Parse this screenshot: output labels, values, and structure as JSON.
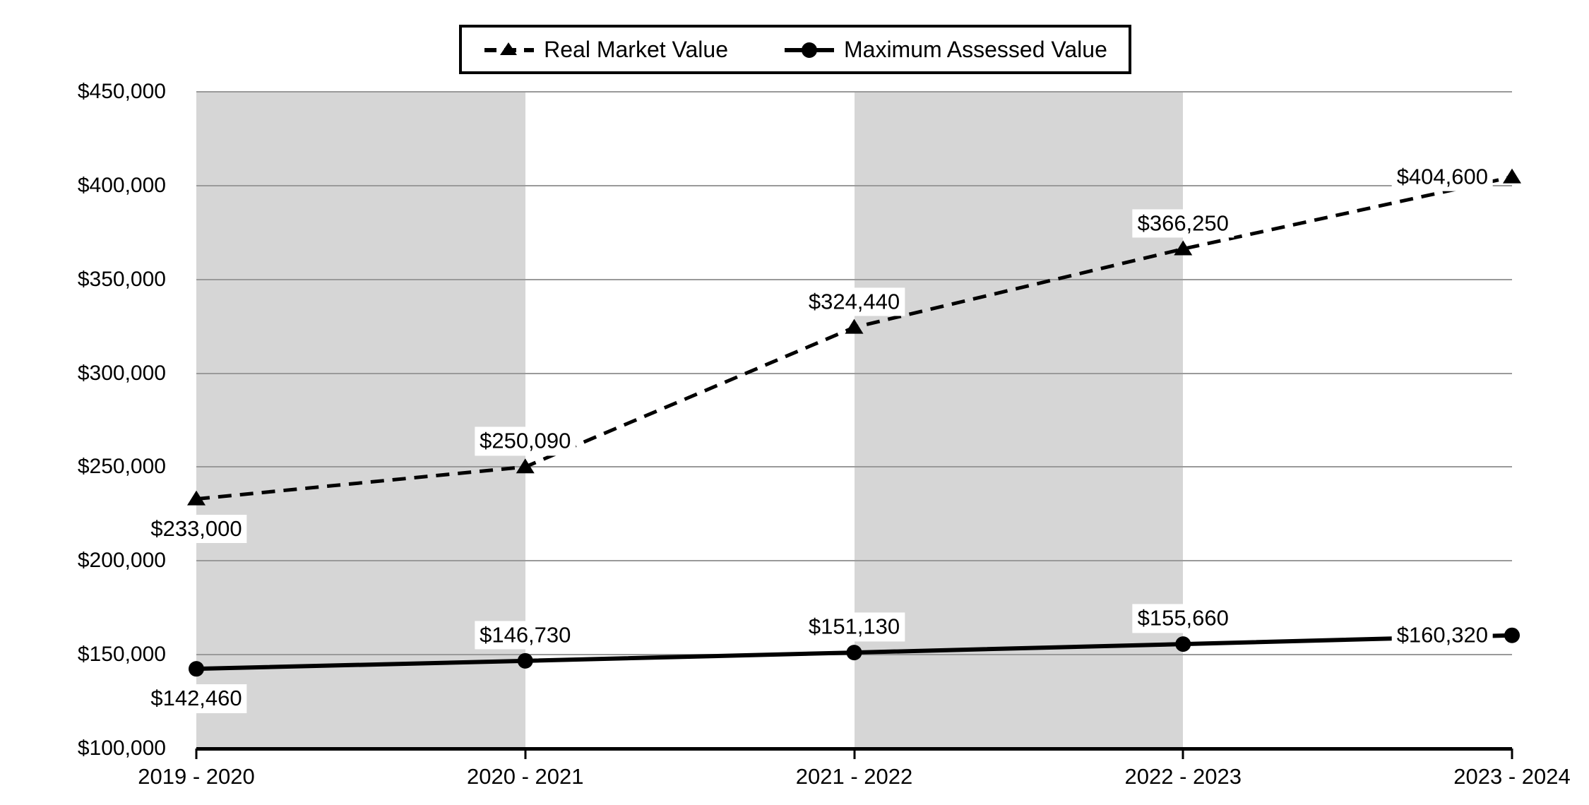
{
  "chart_data": {
    "type": "line",
    "title": "",
    "categories": [
      "2019 - 2020",
      "2020 - 2021",
      "2021 - 2022",
      "2022 - 2023",
      "2023 - 2024"
    ],
    "series": [
      {
        "name": "Real Market Value",
        "line_style": "dashed",
        "marker": "triangle",
        "color": "#000000",
        "values": [
          233000,
          250090,
          324440,
          366250,
          404600
        ],
        "data_labels": [
          "$233,000",
          "$250,090",
          "$324,440",
          "$366,250",
          "$404,600"
        ],
        "label_placements": [
          "below",
          "above",
          "above",
          "above",
          "left"
        ]
      },
      {
        "name": "Maximum Assessed Value",
        "line_style": "solid",
        "marker": "circle",
        "color": "#000000",
        "values": [
          142460,
          146730,
          151130,
          155660,
          160320
        ],
        "data_labels": [
          "$142,460",
          "$146,730",
          "$151,130",
          "$155,660",
          "$160,320"
        ],
        "label_placements": [
          "below",
          "above",
          "above",
          "above",
          "left"
        ]
      }
    ],
    "y_axis": {
      "min": 100000,
      "max": 450000,
      "step": 50000,
      "tick_labels_top_to_bottom": [
        "$450,000",
        "$400,000",
        "$350,000",
        "$300,000",
        "$250,000",
        "$200,000",
        "$150,000",
        "$100,000"
      ]
    },
    "x_axis": {
      "tick_labels": [
        "2019 - 2020",
        "2020 - 2021",
        "2021 - 2022",
        "2022 - 2023",
        "2023 - 2024"
      ]
    },
    "layout": {
      "grid": true,
      "legend_position": "top-center",
      "shaded_category_intervals": [
        [
          0,
          1
        ],
        [
          2,
          3
        ]
      ]
    },
    "colors": {
      "background": "#ffffff",
      "band": "#d6d6d6",
      "gridline": "#9a9a9a",
      "axis": "#000000",
      "series": "#000000"
    }
  }
}
